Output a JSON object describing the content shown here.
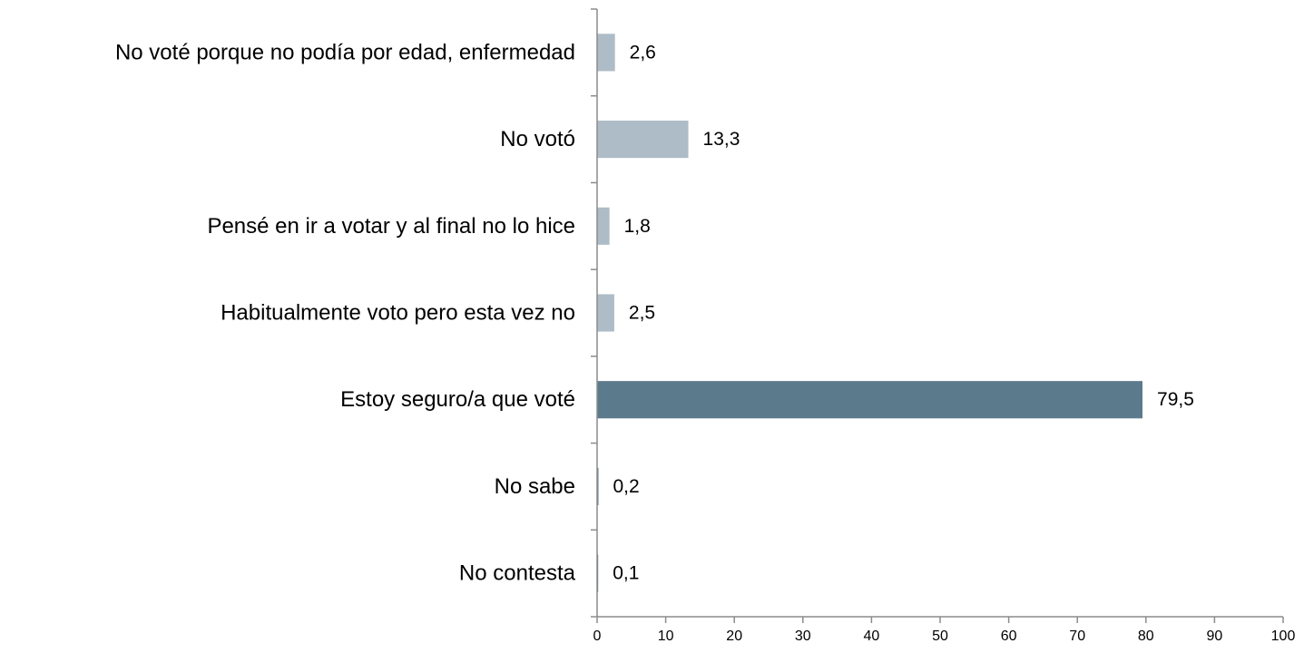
{
  "chart_data": {
    "type": "bar",
    "orientation": "horizontal",
    "title": "",
    "xlabel": "",
    "ylabel": "",
    "xlim": [
      0,
      100
    ],
    "x_ticks": [
      0,
      10,
      20,
      30,
      40,
      50,
      60,
      70,
      80,
      90,
      100
    ],
    "grid": false,
    "legend": "none",
    "categories": [
      "No voté porque no podía por edad, enfermedad",
      "No votó",
      "Pensé en ir a votar y al final no lo hice",
      "Habitualmente voto pero esta vez no",
      "Estoy seguro/a que voté",
      "No sabe",
      "No contesta"
    ],
    "values": [
      2.6,
      13.3,
      1.8,
      2.5,
      79.5,
      0.2,
      0.1
    ],
    "value_labels": [
      "2,6",
      "13,3",
      "1,8",
      "2,5",
      "79,5",
      "0,2",
      "0,1"
    ],
    "colors": [
      "#adbcc6",
      "#adbcc6",
      "#adbcc6",
      "#adbcc6",
      "#5b7b8d",
      "#5b7b8d",
      "#5b7b8d"
    ]
  }
}
